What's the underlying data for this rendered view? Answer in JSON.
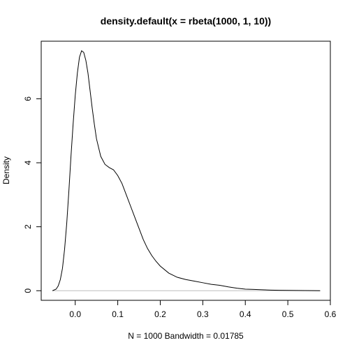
{
  "chart_data": {
    "type": "line",
    "title": "density.default(x = rbeta(1000, 1, 10))",
    "xlabel": "N = 1000   Bandwidth = 0.01785",
    "ylabel": "Density",
    "xlim": [
      -0.08,
      0.6
    ],
    "ylim": [
      -0.3,
      7.8
    ],
    "xticks": [
      0.0,
      0.1,
      0.2,
      0.3,
      0.4,
      0.5,
      0.6
    ],
    "xtick_labels": [
      "0.0",
      "0.1",
      "0.2",
      "0.3",
      "0.4",
      "0.5",
      "0.6"
    ],
    "yticks": [
      0,
      2,
      4,
      6
    ],
    "ytick_labels": [
      "0",
      "2",
      "4",
      "6"
    ],
    "grid": false,
    "series": [
      {
        "x": [
          -0.0535,
          -0.045,
          -0.04,
          -0.035,
          -0.03,
          -0.025,
          -0.02,
          -0.015,
          -0.01,
          -0.005,
          0.0,
          0.005,
          0.01,
          0.015,
          0.02,
          0.025,
          0.03,
          0.035,
          0.04,
          0.045,
          0.05,
          0.06,
          0.07,
          0.08,
          0.09,
          0.1,
          0.11,
          0.12,
          0.13,
          0.14,
          0.15,
          0.16,
          0.17,
          0.18,
          0.19,
          0.2,
          0.22,
          0.24,
          0.26,
          0.28,
          0.3,
          0.32,
          0.34,
          0.36,
          0.38,
          0.4,
          0.42,
          0.44,
          0.46,
          0.48,
          0.5,
          0.52,
          0.54,
          0.56,
          0.576
        ],
        "y": [
          0.0,
          0.05,
          0.15,
          0.35,
          0.7,
          1.3,
          2.1,
          3.1,
          4.2,
          5.2,
          6.1,
          6.8,
          7.3,
          7.5,
          7.45,
          7.2,
          6.8,
          6.25,
          5.7,
          5.2,
          4.75,
          4.2,
          3.95,
          3.85,
          3.78,
          3.6,
          3.35,
          3.0,
          2.65,
          2.3,
          1.95,
          1.6,
          1.32,
          1.1,
          0.92,
          0.77,
          0.55,
          0.42,
          0.35,
          0.3,
          0.25,
          0.2,
          0.17,
          0.12,
          0.08,
          0.05,
          0.04,
          0.03,
          0.02,
          0.015,
          0.01,
          0.008,
          0.005,
          0.003,
          0.0
        ]
      }
    ]
  }
}
